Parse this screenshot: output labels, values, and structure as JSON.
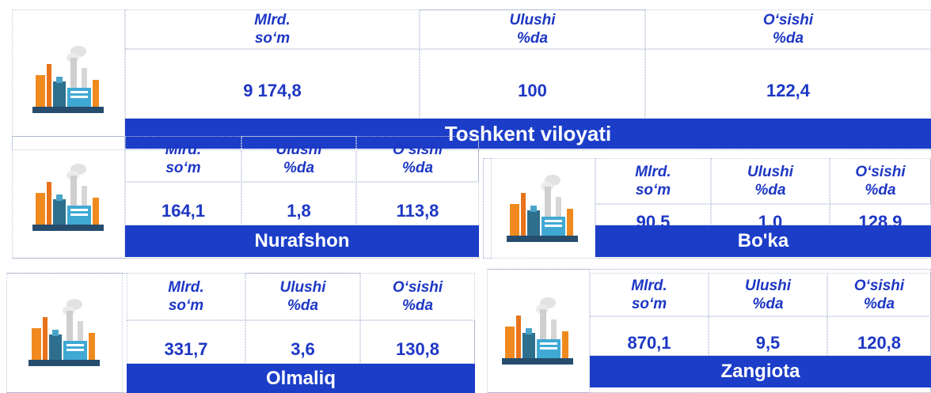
{
  "cards": [
    {
      "headers": [
        [
          "Mlrd.",
          "so‘m"
        ],
        [
          "Ulushi",
          "%da"
        ],
        [
          "O‘sishi",
          "%da"
        ]
      ],
      "values": [
        "9 174,8",
        "100",
        "122,4"
      ],
      "name": "Toshkent viloyati"
    },
    {
      "headers": [
        [
          "Mlrd.",
          "so‘m"
        ],
        [
          "Ulushi",
          "%da"
        ],
        [
          "O‘sishi",
          "%da"
        ]
      ],
      "values": [
        "164,1",
        "1,8",
        "113,8"
      ],
      "name": "Nurafshon"
    },
    {
      "headers": [
        [
          "Mlrd.",
          "so‘m"
        ],
        [
          "Ulushi",
          "%da"
        ],
        [
          "O‘sishi",
          "%da"
        ]
      ],
      "values": [
        "90,5",
        "1,0",
        "128,9"
      ],
      "name": "Bo'ka"
    },
    {
      "headers": [
        [
          "Mlrd.",
          "so‘m"
        ],
        [
          "Ulushi",
          "%da"
        ],
        [
          "O‘sishi",
          "%da"
        ]
      ],
      "values": [
        "331,7",
        "3,6",
        "130,8"
      ],
      "name": "Olmaliq"
    },
    {
      "headers": [
        [
          "Mlrd.",
          "so‘m"
        ],
        [
          "Ulushi",
          "%da"
        ],
        [
          "O‘sishi",
          "%da"
        ]
      ],
      "values": [
        "870,1",
        "9,5",
        "120,8"
      ],
      "name": "Zangiota"
    }
  ]
}
